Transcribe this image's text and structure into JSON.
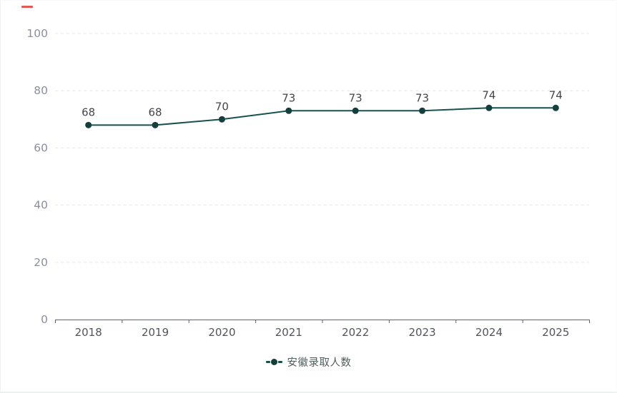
{
  "chart_data": {
    "type": "line",
    "title": "",
    "categories": [
      "2018",
      "2019",
      "2020",
      "2021",
      "2022",
      "2023",
      "2024",
      "2025"
    ],
    "series": [
      {
        "name": "安徽录取人数",
        "values": [
          68,
          68,
          70,
          73,
          73,
          73,
          74,
          74
        ]
      }
    ],
    "xlabel": "",
    "ylabel": "",
    "ylim": [
      0,
      100
    ],
    "y_ticks": [
      0,
      20,
      40,
      60,
      80,
      100
    ],
    "grid": true,
    "grid_style": "dashed",
    "legend_position": "bottom-center",
    "data_labels_shown": true,
    "colors": {
      "line": "#17524e",
      "dot": "#133f3c",
      "grid": "#e8e8ea",
      "axis": "#606269",
      "y_tick_label": "#8b90a0",
      "x_tick_label": "#54555c",
      "data_label": "#45464c",
      "legend_text": "#4f5d5b",
      "background": "#ffffff",
      "card_bottom_edge": "#e7f4f0",
      "artifact_dash": "#e0473d"
    }
  },
  "legend": {
    "label": "安徽录取人数"
  }
}
